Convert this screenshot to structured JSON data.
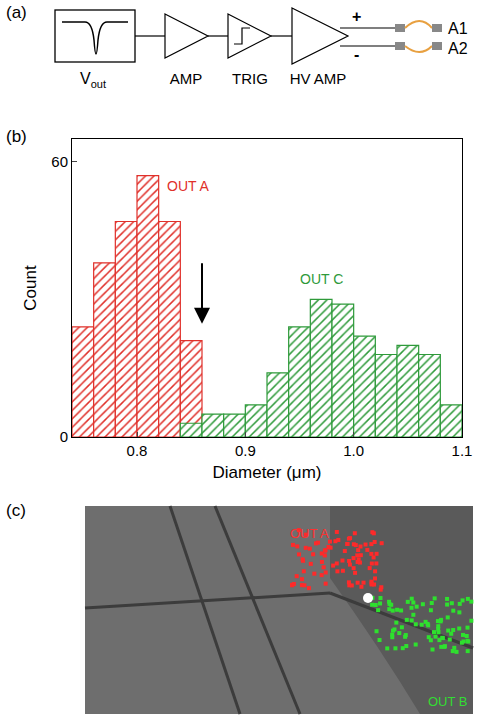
{
  "panel_labels": [
    "(a)",
    "(b)",
    "(c)"
  ],
  "diagram": {
    "source": {
      "label": "V",
      "subscript": "out"
    },
    "stages": [
      "AMP",
      "TRIG",
      "HV AMP"
    ],
    "inputs": [
      "+",
      "-"
    ],
    "outputs": [
      "A1",
      "A2"
    ]
  },
  "chart_data": {
    "type": "histogram",
    "xlabel": "Diameter (μm)",
    "ylabel": "Count",
    "xlim": [
      0.74,
      1.1
    ],
    "xticks": [
      0.8,
      0.9,
      {
        "value": 1.0,
        "label": "1.0"
      },
      1.1
    ],
    "ylim": [
      0,
      65
    ],
    "yticks": [
      0,
      60
    ],
    "marker": "hatched",
    "threshold": 0.86,
    "series": [
      {
        "name": "OUT A",
        "color": "#e0302a",
        "bins": [
          0.74,
          0.76,
          0.78,
          0.8,
          0.82,
          0.84,
          0.86
        ],
        "values": [
          24,
          38,
          47,
          57,
          47,
          21
        ]
      },
      {
        "name": "OUT C",
        "color": "#2e9a3a",
        "bins": [
          0.84,
          0.86,
          0.88,
          0.9,
          0.92,
          0.94,
          0.96,
          0.98,
          1.0,
          1.02,
          1.04,
          1.06,
          1.08,
          1.1
        ],
        "values": [
          3,
          5,
          5,
          7,
          14,
          24,
          30,
          29,
          22,
          18,
          20,
          18,
          7
        ]
      }
    ]
  },
  "image": {
    "labels": [
      {
        "text": "OUT A",
        "color": "#ff3030"
      },
      {
        "text": "OUT B",
        "color": "#33dd33"
      }
    ]
  }
}
